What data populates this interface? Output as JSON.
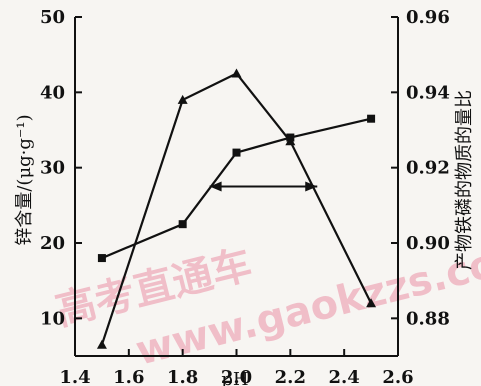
{
  "chart_data": {
    "type": "line",
    "xlabel": "pH",
    "ylabel_left": "锌含量/(μg·g⁻¹)",
    "ylabel_right": "产物铁磷的物质的量比",
    "xlim": [
      1.4,
      2.6
    ],
    "ylim_left": [
      5,
      50
    ],
    "ylim_right": [
      0.87,
      0.96
    ],
    "x_ticks": [
      "1.4",
      "1.6",
      "1.8",
      "2.0",
      "2.2",
      "2.4",
      "2.6"
    ],
    "y_left_ticks": [
      "10",
      "20",
      "30",
      "40",
      "50"
    ],
    "y_right_ticks": [
      "0.88",
      "0.90",
      "0.92",
      "0.94",
      "0.96"
    ],
    "series": [
      {
        "axis": "left",
        "marker": "triangle",
        "x": [
          1.5,
          1.8,
          2.0,
          2.2,
          2.5
        ],
        "y": [
          6.5,
          39,
          42.5,
          33.5,
          12
        ]
      },
      {
        "axis": "right",
        "marker": "square",
        "x": [
          1.5,
          1.8,
          2.0,
          2.2,
          2.5
        ],
        "y": [
          0.896,
          0.905,
          0.924,
          0.928,
          0.933
        ]
      }
    ],
    "annotation": {
      "type": "double_arrow",
      "x1": 1.9,
      "x2": 2.3,
      "y_left": 27.5
    },
    "watermark": "高考直通车 www.gaokzzs.com"
  }
}
